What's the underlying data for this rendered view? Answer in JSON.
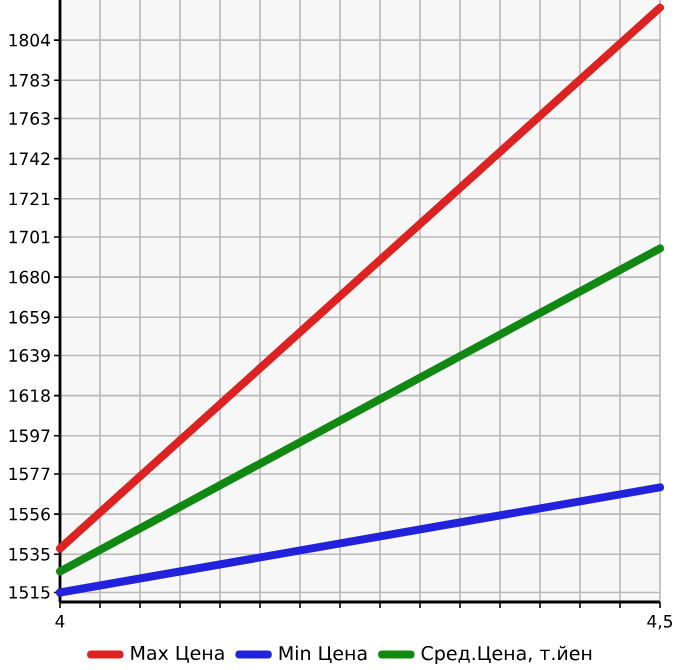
{
  "chart_data": {
    "type": "line",
    "x": [
      4,
      4.5
    ],
    "series": [
      {
        "name": "Max Цена",
        "color": "#dd2222",
        "values": [
          1538,
          1821
        ]
      },
      {
        "name": "Min Цена",
        "color": "#2222dd",
        "values": [
          1515,
          1570
        ]
      },
      {
        "name": "Сред.Цена, т.йен",
        "color": "#118811",
        "values": [
          1526,
          1695
        ]
      }
    ],
    "xlim": [
      4,
      4.5
    ],
    "xticks": [
      {
        "value": 4,
        "label": "4"
      },
      {
        "value": 4.0333,
        "label": null
      },
      {
        "value": 4.0667,
        "label": null
      },
      {
        "value": 4.1,
        "label": null
      },
      {
        "value": 4.1333,
        "label": null
      },
      {
        "value": 4.1667,
        "label": null
      },
      {
        "value": 4.2,
        "label": null
      },
      {
        "value": 4.2333,
        "label": null
      },
      {
        "value": 4.2667,
        "label": null
      },
      {
        "value": 4.3,
        "label": null
      },
      {
        "value": 4.3333,
        "label": null
      },
      {
        "value": 4.3667,
        "label": null
      },
      {
        "value": 4.4,
        "label": null
      },
      {
        "value": 4.4333,
        "label": null
      },
      {
        "value": 4.4667,
        "label": null
      },
      {
        "value": 4.5,
        "label": "4,5"
      }
    ],
    "ylim": [
      1510,
      1825
    ],
    "yticks": [
      1515,
      1535,
      1556,
      1577,
      1597,
      1618,
      1639,
      1659,
      1680,
      1701,
      1721,
      1742,
      1763,
      1783,
      1804
    ],
    "grid": true,
    "legend": "bottom",
    "marker": "none",
    "line_style": "solid"
  }
}
